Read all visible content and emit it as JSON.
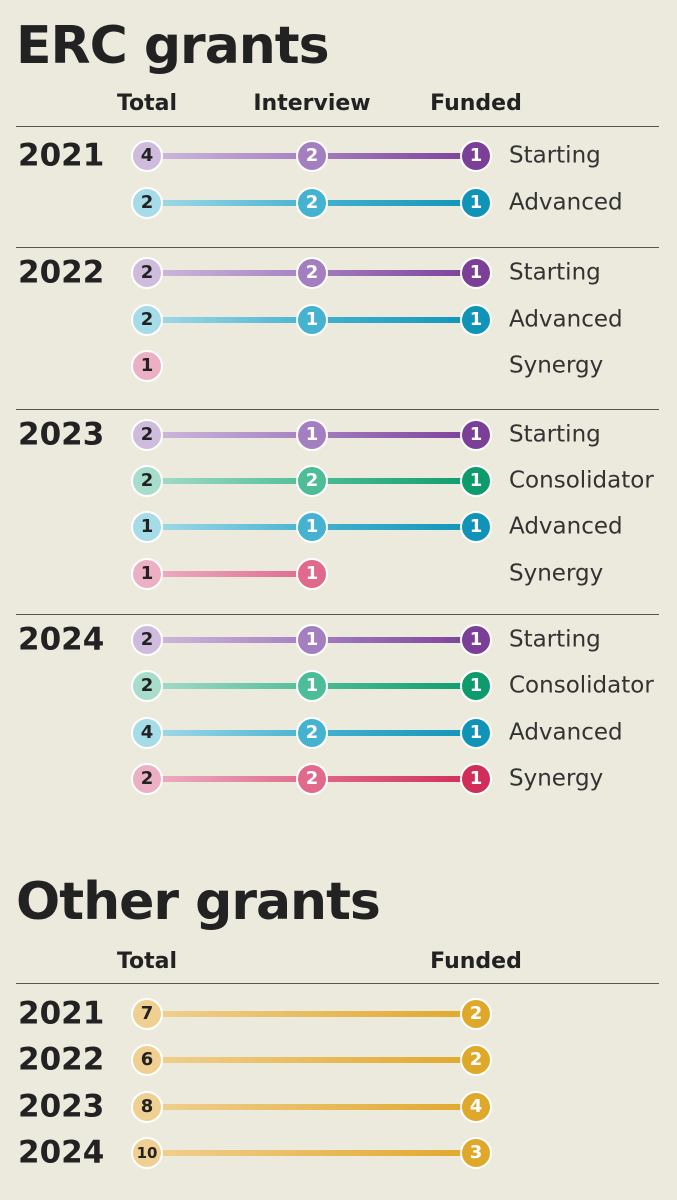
{
  "erc": {
    "title": "ERC grants",
    "headers": {
      "total": "Total",
      "interview": "Interview",
      "funded": "Funded"
    },
    "years": [
      {
        "year": "2021",
        "rows": [
          {
            "type": "Starting",
            "total": "4",
            "interview": "2",
            "funded": "1"
          },
          {
            "type": "Advanced",
            "total": "2",
            "interview": "2",
            "funded": "1"
          }
        ]
      },
      {
        "year": "2022",
        "rows": [
          {
            "type": "Starting",
            "total": "2",
            "interview": "2",
            "funded": "1"
          },
          {
            "type": "Advanced",
            "total": "2",
            "interview": "1",
            "funded": "1"
          },
          {
            "type": "Synergy",
            "total": "1",
            "interview": null,
            "funded": null
          }
        ]
      },
      {
        "year": "2023",
        "rows": [
          {
            "type": "Starting",
            "total": "2",
            "interview": "1",
            "funded": "1"
          },
          {
            "type": "Consolidator",
            "total": "2",
            "interview": "2",
            "funded": "1"
          },
          {
            "type": "Advanced",
            "total": "1",
            "interview": "1",
            "funded": "1"
          },
          {
            "type": "Synergy",
            "total": "1",
            "interview": "1",
            "funded": null
          }
        ]
      },
      {
        "year": "2024",
        "rows": [
          {
            "type": "Starting",
            "total": "2",
            "interview": "1",
            "funded": "1"
          },
          {
            "type": "Consolidator",
            "total": "2",
            "interview": "1",
            "funded": "1"
          },
          {
            "type": "Advanced",
            "total": "4",
            "interview": "2",
            "funded": "1"
          },
          {
            "type": "Synergy",
            "total": "2",
            "interview": "2",
            "funded": "1"
          }
        ]
      }
    ]
  },
  "other": {
    "title": "Other grants",
    "headers": {
      "total": "Total",
      "funded": "Funded"
    },
    "rows": [
      {
        "year": "2021",
        "total": "7",
        "funded": "2"
      },
      {
        "year": "2022",
        "total": "6",
        "funded": "2"
      },
      {
        "year": "2023",
        "total": "8",
        "funded": "4"
      },
      {
        "year": "2024",
        "total": "10",
        "funded": "3"
      }
    ]
  },
  "colors": {
    "Starting": {
      "light": "#cfbbdc",
      "mid": "#a47fc0",
      "dark": "#7b3f98"
    },
    "Advanced": {
      "light": "#a6dbe8",
      "mid": "#45b2d0",
      "dark": "#0f94b7"
    },
    "Consolidator": {
      "light": "#a8dccb",
      "mid": "#4dbd98",
      "dark": "#0d9b6c"
    },
    "Synergy": {
      "light": "#ecb0c4",
      "mid": "#e0698c",
      "dark": "#d02d58"
    },
    "Other": {
      "light": "#f0d092",
      "dark": "#e0a82a"
    }
  }
}
